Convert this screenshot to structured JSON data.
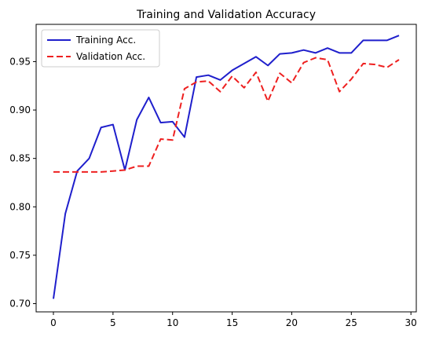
{
  "chart_data": {
    "type": "line",
    "title": "Training and Validation Accuracy",
    "xlabel": "",
    "ylabel": "",
    "xlim": [
      -1.45,
      30.45
    ],
    "ylim": [
      0.6915,
      0.9885
    ],
    "xticks": [
      0,
      5,
      10,
      15,
      20,
      25,
      30
    ],
    "yticks": [
      0.7,
      0.75,
      0.8,
      0.85,
      0.9,
      0.95
    ],
    "grid": false,
    "legend_position": "top-left",
    "x": [
      0,
      1,
      2,
      3,
      4,
      5,
      6,
      7,
      8,
      9,
      10,
      11,
      12,
      13,
      14,
      15,
      16,
      17,
      18,
      19,
      20,
      21,
      22,
      23,
      24,
      25,
      26,
      27,
      28,
      29
    ],
    "series": [
      {
        "name": "Training Acc.",
        "color": "#1f1fcc",
        "style": "solid",
        "values": [
          0.705,
          0.793,
          0.837,
          0.85,
          0.882,
          0.885,
          0.838,
          0.89,
          0.913,
          0.887,
          0.888,
          0.872,
          0.934,
          0.936,
          0.931,
          0.941,
          0.948,
          0.955,
          0.946,
          0.958,
          0.959,
          0.962,
          0.959,
          0.964,
          0.959,
          0.959,
          0.972,
          0.972,
          0.972,
          0.977
        ]
      },
      {
        "name": "Validation Acc.",
        "color": "#ee2020",
        "style": "dashed",
        "values": [
          0.836,
          0.836,
          0.836,
          0.836,
          0.836,
          0.837,
          0.838,
          0.842,
          0.842,
          0.87,
          0.869,
          0.922,
          0.929,
          0.93,
          0.919,
          0.935,
          0.923,
          0.939,
          0.909,
          0.938,
          0.928,
          0.949,
          0.954,
          0.952,
          0.919,
          0.932,
          0.948,
          0.947,
          0.944,
          0.952
        ]
      }
    ]
  }
}
